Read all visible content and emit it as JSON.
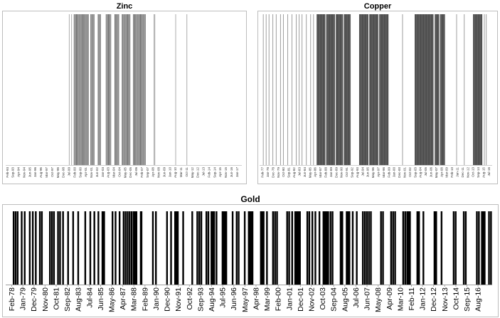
{
  "chart_data": [
    {
      "type": "bar",
      "title": "Zinc",
      "xlabel": "",
      "ylabel": "",
      "xlim": [
        "Dec-92",
        "Jul-17"
      ],
      "ylim": [
        0,
        1
      ],
      "grid": false,
      "bar_color": "#4a4a4a",
      "tick_labels": [
        "Feb-93",
        "Sep-93",
        "Apr-94",
        "Nov-94",
        "Jun-95",
        "Jan-96",
        "Aug-96",
        "Mar-97",
        "Oct-97",
        "May-98",
        "Dec-98",
        "Jul-99",
        "Feb-00",
        "Sep-00",
        "Apr-01",
        "Nov-01",
        "Jun-02",
        "Jan-03",
        "Aug-03",
        "Mar-04",
        "Oct-04",
        "May-05",
        "Dec-05",
        "Jul-06",
        "Feb-07",
        "Sep-07",
        "Apr-08",
        "Nov-08",
        "Jun-09",
        "Jan-10",
        "Aug-10",
        "Mar-11",
        "Oct-11",
        "May-12",
        "Dec-12",
        "Jul-13",
        "Feb-14",
        "Sep-14",
        "Apr-15",
        "Nov-15",
        "Jun-16",
        "Jan-17"
      ],
      "periods": [
        [
          "Jul-99",
          "Jul-99"
        ],
        [
          "Oct-99",
          "Oct-99"
        ],
        [
          "Jan-00",
          "Jul-01"
        ],
        [
          "Oct-01",
          "Feb-02"
        ],
        [
          "Jul-02",
          "Oct-02"
        ],
        [
          "May-03",
          "Nov-03"
        ],
        [
          "Apr-04",
          "Sep-04"
        ],
        [
          "Jan-05",
          "Nov-05"
        ],
        [
          "Mar-06",
          "Jun-07"
        ],
        [
          "May-08",
          "May-08"
        ],
        [
          "Jun-08",
          "Jun-08"
        ],
        [
          "Aug-10",
          "Aug-10"
        ],
        [
          "Oct-11",
          "Oct-11"
        ]
      ]
    },
    {
      "type": "bar",
      "title": "Copper",
      "xlabel": "",
      "ylabel": "",
      "xlim": [
        "Aug-76",
        "Feb-17"
      ],
      "ylim": [
        0,
        1
      ],
      "grid": false,
      "bar_color": "#3c3c3c",
      "tick_labels": [
        "Feb-77",
        "Jan-78",
        "Dec-78",
        "Nov-79",
        "Oct-80",
        "Sep-81",
        "Aug-82",
        "Jul-83",
        "Jun-84",
        "May-85",
        "Apr-86",
        "Mar-87",
        "Feb-88",
        "Jan-89",
        "Dec-89",
        "Nov-90",
        "Oct-91",
        "Sep-92",
        "Aug-93",
        "Jul-94",
        "Jun-95",
        "May-96",
        "Apr-97",
        "Mar-98",
        "Feb-99",
        "Jan-00",
        "Dec-00",
        "Nov-01",
        "Oct-02",
        "Sep-03",
        "Aug-04",
        "Jul-05",
        "Jun-06",
        "May-07",
        "Apr-08",
        "Mar-09",
        "Feb-10",
        "Jan-11",
        "Dec-11",
        "Nov-12",
        "Oct-13",
        "Sep-14",
        "Aug-15",
        "Jul-16"
      ],
      "periods": [
        [
          "Mar-77",
          "Mar-77"
        ],
        [
          "Sep-77",
          "Sep-77"
        ],
        [
          "Mar-78",
          "Mar-78"
        ],
        [
          "Nov-78",
          "Nov-78"
        ],
        [
          "Jun-79",
          "Jun-79"
        ],
        [
          "Mar-80",
          "Mar-80"
        ],
        [
          "Sep-80",
          "Sep-80"
        ],
        [
          "Jun-81",
          "Jun-81"
        ],
        [
          "Mar-82",
          "Mar-82"
        ],
        [
          "Dec-82",
          "Dec-82"
        ],
        [
          "Jun-83",
          "Jun-83"
        ],
        [
          "Dec-83",
          "Dec-83"
        ],
        [
          "Sep-84",
          "Sep-84"
        ],
        [
          "Jun-85",
          "Jun-85"
        ],
        [
          "Dec-85",
          "Dec-85"
        ],
        [
          "Jul-86",
          "Dec-87"
        ],
        [
          "Mar-88",
          "Aug-89"
        ],
        [
          "Nov-89",
          "Jan-91"
        ],
        [
          "Apr-91",
          "May-92"
        ],
        [
          "Dec-93",
          "Jun-95"
        ],
        [
          "Sep-95",
          "Mar-97"
        ],
        [
          "Jun-97",
          "Dec-98"
        ],
        [
          "Jun-01",
          "Jun-01"
        ],
        [
          "Aug-03",
          "Oct-06"
        ],
        [
          "Feb-07",
          "Oct-07"
        ],
        [
          "Jan-08",
          "Oct-08"
        ],
        [
          "Nov-10",
          "Nov-10"
        ],
        [
          "Mar-12",
          "Mar-12"
        ],
        [
          "Oct-13",
          "Apr-15"
        ],
        [
          "Sep-15",
          "Sep-15"
        ],
        [
          "Jan-16",
          "Jan-16"
        ]
      ]
    },
    {
      "type": "bar",
      "title": "Gold",
      "xlabel": "",
      "ylabel": "",
      "xlim": [
        "Aug-77",
        "Oct-17"
      ],
      "ylim": [
        0,
        1
      ],
      "grid": false,
      "bar_color": "#000000",
      "tick_labels": [
        "Feb-78",
        "Jan-79",
        "Dec-79",
        "Nov-80",
        "Oct-81",
        "Sep-82",
        "Aug-83",
        "Jul-84",
        "Jun-85",
        "May-86",
        "Apr-87",
        "Mar-88",
        "Feb-89",
        "Jan-90",
        "Dec-90",
        "Nov-91",
        "Oct-92",
        "Sep-93",
        "Aug-94",
        "Jul-95",
        "Jun-96",
        "May-97",
        "Apr-98",
        "Mar-99",
        "Feb-00",
        "Jan-01",
        "Dec-01",
        "Nov-02",
        "Oct-03",
        "Sep-04",
        "Aug-05",
        "Jul-06",
        "Jun-07",
        "May-08",
        "Apr-09",
        "Mar-10",
        "Feb-11",
        "Jan-12",
        "Dec-12",
        "Nov-13",
        "Oct-14",
        "Sep-15",
        "Aug-16"
      ],
      "periods": [
        [
          "Mar-78",
          "Mar-78"
        ],
        [
          "May-78",
          "May-78"
        ],
        [
          "Jul-78",
          "Jul-78"
        ],
        [
          "Nov-78",
          "Nov-78"
        ],
        [
          "Feb-79",
          "Feb-79"
        ],
        [
          "Jul-79",
          "Jul-79"
        ],
        [
          "Oct-79",
          "Oct-79"
        ],
        [
          "Jan-80",
          "Jan-80"
        ],
        [
          "May-80",
          "May-80"
        ],
        [
          "Jul-80",
          "Jul-80"
        ],
        [
          "Mar-81",
          "Mar-81"
        ],
        [
          "May-81",
          "May-81"
        ],
        [
          "Jul-81",
          "Jul-81"
        ],
        [
          "Nov-81",
          "Nov-81"
        ],
        [
          "Jan-82",
          "Jan-82"
        ],
        [
          "Apr-82",
          "Apr-82"
        ],
        [
          "Sep-82",
          "Sep-82"
        ],
        [
          "Feb-83",
          "Feb-83"
        ],
        [
          "Jul-83",
          "Jul-83"
        ],
        [
          "Feb-84",
          "Feb-84"
        ],
        [
          "Jul-84",
          "Jul-84"
        ],
        [
          "Nov-84",
          "Nov-84"
        ],
        [
          "Mar-85",
          "Mar-85"
        ],
        [
          "Jul-85",
          "Sep-85"
        ],
        [
          "May-86",
          "May-86"
        ],
        [
          "Aug-86",
          "Aug-86"
        ],
        [
          "Dec-86",
          "Dec-86"
        ],
        [
          "Apr-87",
          "Apr-87"
        ],
        [
          "Jun-87",
          "Jun-87"
        ],
        [
          "Aug-87",
          "Aug-87"
        ],
        [
          "Oct-87",
          "Oct-87"
        ],
        [
          "Dec-87",
          "Dec-87"
        ],
        [
          "Feb-88",
          "May-88"
        ],
        [
          "Sep-88",
          "Oct-88"
        ],
        [
          "Sep-89",
          "Sep-89"
        ],
        [
          "Dec-89",
          "Dec-89"
        ],
        [
          "Nov-90",
          "Nov-90"
        ],
        [
          "Mar-91",
          "Mar-91"
        ],
        [
          "Jul-91",
          "Oct-91"
        ],
        [
          "Mar-92",
          "Mar-92"
        ],
        [
          "Dec-92",
          "Dec-92"
        ],
        [
          "May-93",
          "May-93"
        ],
        [
          "Jul-93",
          "Jul-93"
        ],
        [
          "Sep-93",
          "Sep-93"
        ],
        [
          "Feb-94",
          "Feb-94"
        ],
        [
          "Apr-94",
          "Apr-94"
        ],
        [
          "Jul-94",
          "Oct-94"
        ],
        [
          "Dec-94",
          "Dec-94"
        ],
        [
          "Jun-95",
          "Oct-95"
        ],
        [
          "Apr-96",
          "Apr-96"
        ],
        [
          "Aug-96",
          "Aug-96"
        ],
        [
          "Oct-96",
          "Oct-96"
        ],
        [
          "Apr-97",
          "Apr-97"
        ],
        [
          "Aug-97",
          "Dec-97"
        ],
        [
          "Aug-98",
          "Nov-98"
        ],
        [
          "Feb-99",
          "Feb-99"
        ],
        [
          "Aug-99",
          "Aug-99"
        ],
        [
          "Oct-99",
          "Oct-99"
        ],
        [
          "Dec-99",
          "Dec-99"
        ],
        [
          "Oct-00",
          "Oct-00"
        ],
        [
          "Dec-00",
          "Dec-00"
        ],
        [
          "Mar-01",
          "Mar-01"
        ],
        [
          "Jun-01",
          "Nov-01"
        ],
        [
          "Jun-02",
          "Jun-02"
        ],
        [
          "Aug-02",
          "Aug-02"
        ],
        [
          "Nov-02",
          "Nov-02"
        ],
        [
          "Feb-03",
          "Feb-03"
        ],
        [
          "Jun-03",
          "Jun-03"
        ],
        [
          "Oct-03",
          "Mar-04"
        ],
        [
          "May-04",
          "May-04"
        ],
        [
          "Jul-04",
          "Jul-04"
        ],
        [
          "Mar-05",
          "May-05"
        ],
        [
          "Sep-05",
          "Dec-05"
        ],
        [
          "Mar-06",
          "Mar-06"
        ],
        [
          "Jul-06",
          "Jul-06"
        ],
        [
          "Jan-07",
          "Jan-07"
        ],
        [
          "Mar-07",
          "Mar-07"
        ],
        [
          "May-07",
          "May-07"
        ],
        [
          "Jul-07",
          "Jul-07"
        ],
        [
          "Sep-07",
          "Sep-07"
        ],
        [
          "Jul-08",
          "Jul-08"
        ],
        [
          "Sep-08",
          "Sep-08"
        ],
        [
          "May-09",
          "May-09"
        ],
        [
          "Jul-09",
          "Jul-09"
        ],
        [
          "Sep-09",
          "Sep-09"
        ],
        [
          "May-10",
          "May-10"
        ],
        [
          "Jul-10",
          "Jul-10"
        ],
        [
          "Sep-10",
          "Dec-10"
        ],
        [
          "Jul-11",
          "Sep-11"
        ],
        [
          "Jan-12",
          "Jan-12"
        ],
        [
          "Dec-12",
          "Feb-13"
        ],
        [
          "Jul-13",
          "Jul-13"
        ],
        [
          "Jul-14",
          "Jul-14"
        ],
        [
          "Sep-14",
          "Sep-14"
        ],
        [
          "May-15",
          "May-15"
        ],
        [
          "Jul-15",
          "Jul-15"
        ],
        [
          "Jun-16",
          "Jun-16"
        ],
        [
          "Aug-16",
          "Aug-16"
        ],
        [
          "Nov-16",
          "Feb-17"
        ],
        [
          "Jun-17",
          "Jun-17"
        ],
        [
          "Aug-17",
          "Aug-17"
        ]
      ]
    }
  ]
}
